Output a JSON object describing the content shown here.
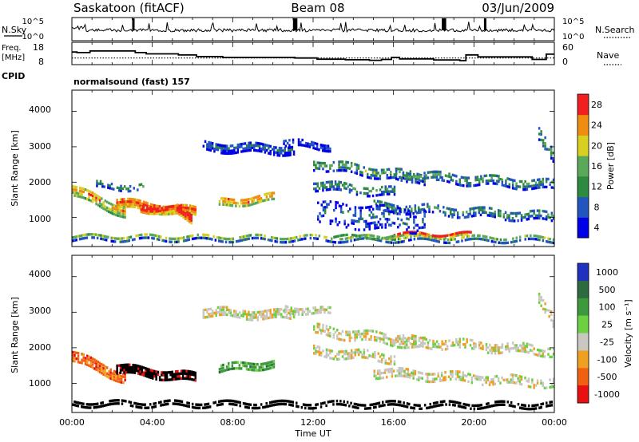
{
  "header": {
    "station": "Saskatoon (fitACF)",
    "beam": "Beam 08",
    "date": "03/Jun/2009"
  },
  "chart_data": [
    {
      "type": "line",
      "panel": "nsky",
      "ylabel": "N.Sky",
      "right_label": "N.Search",
      "y_ticks_left": [
        "10^5",
        "10^0"
      ],
      "y_ticks_right": [
        "10^5",
        "10^0"
      ],
      "log_scale": true
    },
    {
      "type": "line",
      "panel": "freq",
      "ylabel_lines": [
        "Freq.",
        "[MHz]"
      ],
      "right_label": "Nave",
      "y_ticks_left": [
        "18",
        "8"
      ],
      "y_ticks_right": [
        "60",
        "0"
      ],
      "freq_steps": [
        {
          "x": 0.0,
          "y": 16.8
        },
        {
          "x": 0.25,
          "y": 16.4
        },
        {
          "x": 0.9,
          "y": 17.5
        },
        {
          "x": 3.15,
          "y": 16.4
        },
        {
          "x": 3.7,
          "y": 15.5
        },
        {
          "x": 5.3,
          "y": 14.7
        },
        {
          "x": 6.2,
          "y": 13.6
        },
        {
          "x": 7.5,
          "y": 13.0
        },
        {
          "x": 11.1,
          "y": 12.6
        },
        {
          "x": 12.2,
          "y": 11.8
        },
        {
          "x": 13.6,
          "y": 11.4
        },
        {
          "x": 14.8,
          "y": 11.0
        },
        {
          "x": 15.4,
          "y": 11.6
        },
        {
          "x": 15.9,
          "y": 13.0
        },
        {
          "x": 16.3,
          "y": 12.0
        },
        {
          "x": 18.0,
          "y": 11.3
        },
        {
          "x": 19.3,
          "y": 10.8
        },
        {
          "x": 19.6,
          "y": 14.8
        },
        {
          "x": 20.2,
          "y": 13.4
        },
        {
          "x": 22.9,
          "y": 11.6
        },
        {
          "x": 23.6,
          "y": 15.3
        },
        {
          "x": 24.0,
          "y": 15.3
        }
      ],
      "nave_level": 12.6
    },
    {
      "type": "label",
      "panel": "cpid",
      "label": "CPID",
      "text": "normalsound (fast) 157"
    },
    {
      "type": "heatmap",
      "panel": "power",
      "ylabel": "Slant Range [km]",
      "y_ticks": [
        "1000",
        "2000",
        "3000",
        "4000"
      ],
      "ylim": [
        180,
        4600
      ],
      "xlim": [
        0,
        24
      ],
      "colorbar_label": "Power [dB]",
      "colorbar_ticks": [
        "4",
        "8",
        "12",
        "16",
        "20",
        "24",
        "28"
      ],
      "colorbar_colors": [
        "#0000e8",
        "#2255c0",
        "#2e8a3e",
        "#5aa85a",
        "#d8d020",
        "#f08c10",
        "#f02020"
      ],
      "bands": [
        {
          "x0": 0.0,
          "x1": 2.6,
          "r0": 1750,
          "r1": 1150,
          "w": 330,
          "p": 5,
          "d": 0.85
        },
        {
          "x0": 2.2,
          "x1": 6.1,
          "r0": 1400,
          "r1": 1150,
          "w": 280,
          "p": 6,
          "d": 0.9
        },
        {
          "x0": 3.4,
          "x1": 5.0,
          "r0": 1250,
          "r1": 1200,
          "w": 200,
          "p": 6.8,
          "d": 0.95
        },
        {
          "x0": 5.2,
          "x1": 5.9,
          "r0": 1200,
          "r1": 1000,
          "w": 300,
          "p": 6.8,
          "d": 0.95
        },
        {
          "x0": 7.3,
          "x1": 10.0,
          "r0": 1400,
          "r1": 1550,
          "w": 250,
          "p": 5.5,
          "d": 0.75
        },
        {
          "x0": 1.2,
          "x1": 3.5,
          "r0": 1900,
          "r1": 1850,
          "w": 200,
          "p": 2.5,
          "d": 0.35
        },
        {
          "x0": 6.5,
          "x1": 11.0,
          "r0": 3000,
          "r1": 2900,
          "w": 280,
          "p": 1.5,
          "d": 0.75
        },
        {
          "x0": 10.5,
          "x1": 12.8,
          "r0": 3100,
          "r1": 3000,
          "w": 220,
          "p": 1.4,
          "d": 0.7
        },
        {
          "x0": 12.0,
          "x1": 17.5,
          "r0": 2500,
          "r1": 2100,
          "w": 320,
          "p": 2.8,
          "d": 0.55
        },
        {
          "x0": 12.0,
          "x1": 16.0,
          "r0": 1900,
          "r1": 1700,
          "w": 280,
          "p": 2.5,
          "d": 0.5
        },
        {
          "x0": 16.0,
          "x1": 24.0,
          "r0": 2200,
          "r1": 1900,
          "w": 300,
          "p": 2.5,
          "d": 0.55
        },
        {
          "x0": 15.0,
          "x1": 24.0,
          "r0": 1300,
          "r1": 1000,
          "w": 280,
          "p": 2.4,
          "d": 0.5
        },
        {
          "x0": 0.0,
          "x1": 24.0,
          "r0": 420,
          "r1": 380,
          "w": 180,
          "p": 3.2,
          "d": 0.75
        },
        {
          "x0": 16.0,
          "x1": 19.8,
          "r0": 500,
          "r1": 500,
          "w": 120,
          "p": 6.0,
          "d": 0.8
        },
        {
          "x0": 13.0,
          "x1": 16.0,
          "r0": 450,
          "r1": 450,
          "w": 100,
          "p": 4.8,
          "d": 0.7
        },
        {
          "x0": 23.2,
          "x1": 24.0,
          "r0": 3400,
          "r1": 2600,
          "w": 400,
          "p": 2.5,
          "d": 0.5
        },
        {
          "x0": 12.2,
          "x1": 17.5,
          "r0": 1100,
          "r1": 900,
          "w": 700,
          "p": 1.6,
          "d": 0.3
        }
      ]
    },
    {
      "type": "heatmap",
      "panel": "velocity",
      "ylabel": "Slant Range [km]",
      "y_ticks": [
        "1000",
        "2000",
        "3000",
        "4000"
      ],
      "ylim": [
        180,
        4600
      ],
      "xlim": [
        0,
        24
      ],
      "colorbar_label": "Velocity [m s⁻¹]",
      "colorbar_ticks": [
        "1000",
        "500",
        "100",
        "25",
        "-25",
        "-100",
        "-500",
        "-1000"
      ],
      "colorbar_colors": [
        "#2030c0",
        "#2e6a40",
        "#3c9a3c",
        "#6cd040",
        "#c8c8c0",
        "#f0a020",
        "#f06010",
        "#e81010"
      ],
      "bands": [
        {
          "x0": 0.0,
          "x1": 2.6,
          "r0": 1750,
          "r1": 1150,
          "w": 330,
          "v": 6.0,
          "d": 0.85
        },
        {
          "x0": 2.2,
          "x1": 6.1,
          "r0": 1400,
          "r1": 1150,
          "w": 280,
          "v": 6.2,
          "d": 0.9
        },
        {
          "x0": 7.3,
          "x1": 10.0,
          "r0": 1400,
          "r1": 1550,
          "w": 250,
          "v": 2.0,
          "d": 0.8
        },
        {
          "x0": 6.5,
          "x1": 11.0,
          "r0": 3000,
          "r1": 2900,
          "w": 280,
          "v": 4.0,
          "d": 0.75
        },
        {
          "x0": 10.5,
          "x1": 12.8,
          "r0": 3100,
          "r1": 3000,
          "w": 220,
          "v": 4.0,
          "d": 0.7
        },
        {
          "x0": 12.0,
          "x1": 17.5,
          "r0": 2500,
          "r1": 2100,
          "w": 320,
          "v": 4.0,
          "d": 0.55
        },
        {
          "x0": 12.0,
          "x1": 16.0,
          "r0": 1900,
          "r1": 1700,
          "w": 280,
          "v": 4.0,
          "d": 0.5
        },
        {
          "x0": 16.0,
          "x1": 24.0,
          "r0": 2200,
          "r1": 1900,
          "w": 300,
          "v": 4.0,
          "d": 0.55
        },
        {
          "x0": 15.0,
          "x1": 24.0,
          "r0": 1300,
          "r1": 1000,
          "w": 280,
          "v": 4.0,
          "d": 0.5
        },
        {
          "x0": 0.0,
          "x1": 24.0,
          "r0": 420,
          "r1": 380,
          "w": 180,
          "v": 4.6,
          "d": 0.7
        },
        {
          "x0": 23.2,
          "x1": 24.0,
          "r0": 3400,
          "r1": 2600,
          "w": 400,
          "v": 4.0,
          "d": 0.5
        }
      ]
    }
  ],
  "x_axis": {
    "ticks": [
      "00:00",
      "04:00",
      "08:00",
      "12:00",
      "16:00",
      "20:00",
      "00:00"
    ],
    "xlabel": "Time UT"
  }
}
